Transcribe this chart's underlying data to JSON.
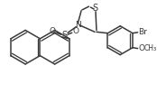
{
  "background": "#ffffff",
  "line_color": "#3a3a3a",
  "lw": 1.1,
  "font_size": 6.5,
  "xlim": [
    0,
    174
  ],
  "ylim": [
    0,
    104
  ]
}
